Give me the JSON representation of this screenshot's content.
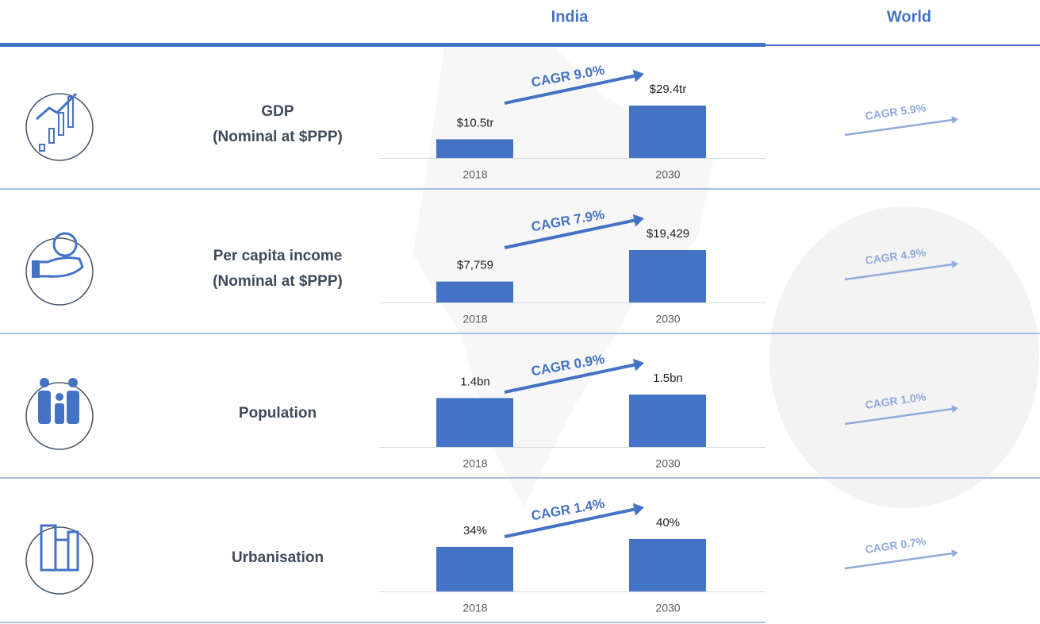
{
  "header": {
    "india": "India",
    "world": "World"
  },
  "chart_data": [
    {
      "type": "bar",
      "title": "GDP",
      "subtitle": "(Nominal at $PPP)",
      "categories": [
        "2018",
        "2030"
      ],
      "values": [
        10.5,
        29.4
      ],
      "value_labels": [
        "$10.5tr",
        "$29.4tr"
      ],
      "color": "#4472c4",
      "cagr": "CAGR 9.0%",
      "world_cagr": "CAGR 5.9%"
    },
    {
      "type": "bar",
      "title": "Per capita income",
      "subtitle": "(Nominal at $PPP)",
      "categories": [
        "2018",
        "2030"
      ],
      "values": [
        7759,
        19429
      ],
      "value_labels": [
        "$7,759",
        "$19,429"
      ],
      "color": "#4472c4",
      "cagr": "CAGR 7.9%",
      "world_cagr": "CAGR 4.9%"
    },
    {
      "type": "bar",
      "title": "Population",
      "categories": [
        "2018",
        "2030"
      ],
      "values": [
        1.4,
        1.5
      ],
      "value_labels": [
        "1.4bn",
        "1.5bn"
      ],
      "color": "#4472c4",
      "cagr": "CAGR 0.9%",
      "world_cagr": "CAGR 1.0%"
    },
    {
      "type": "bar",
      "title": "Urbanisation",
      "categories": [
        "2018",
        "2030"
      ],
      "values": [
        34,
        40
      ],
      "value_labels": [
        "34%",
        "40%"
      ],
      "color": "#4472c4",
      "cagr": "CAGR 1.4%",
      "world_cagr": "CAGR 0.7%"
    }
  ]
}
